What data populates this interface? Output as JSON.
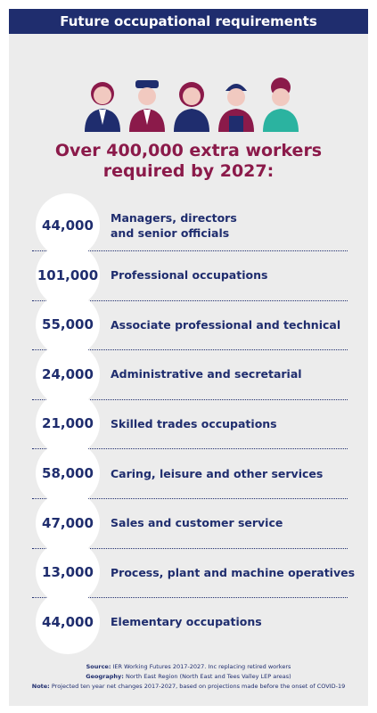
{
  "header": {
    "title": "Future occupational requirements"
  },
  "headline": {
    "lines": [
      "Over 400,000 extra workers",
      "required by 2027:"
    ]
  },
  "rows": [
    {
      "value": "44,000",
      "lines": [
        "Managers, directors",
        "and senior officials"
      ]
    },
    {
      "value": "101,000",
      "lines": [
        "Professional occupations"
      ]
    },
    {
      "value": "55,000",
      "lines": [
        "Associate professional and technical"
      ]
    },
    {
      "value": "24,000",
      "lines": [
        "Administrative and secretarial"
      ]
    },
    {
      "value": "21,000",
      "lines": [
        "Skilled trades occupations"
      ]
    },
    {
      "value": "58,000",
      "lines": [
        "Caring, leisure and other services"
      ]
    },
    {
      "value": "47,000",
      "lines": [
        "Sales and customer service"
      ]
    },
    {
      "value": "13,000",
      "lines": [
        "Process, plant and machine operatives"
      ]
    },
    {
      "value": "44,000",
      "lines": [
        "Elementary occupations"
      ]
    }
  ],
  "footer": [
    {
      "label": "Source:",
      "text": "IER Working Futures 2017-2027. Inc replacing retired workers"
    },
    {
      "label": "Geography:",
      "text": "North East Region (North East and Tees Valley LEP areas)"
    },
    {
      "label": "Note:",
      "text": "Projected ten year net changes 2017-2027, based on projections made before the onset of COVID-19"
    }
  ]
}
